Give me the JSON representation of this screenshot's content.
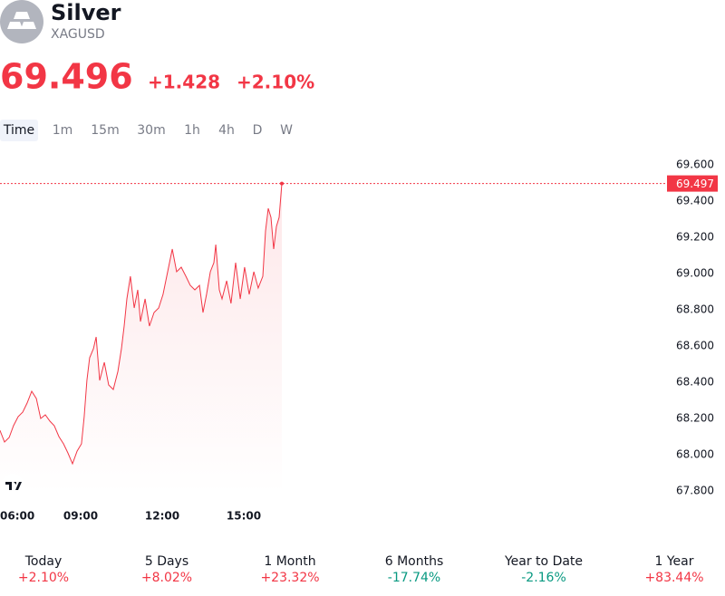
{
  "header": {
    "name": "Silver",
    "symbol": "XAGUSD",
    "price": "69.496",
    "change": "+1.428",
    "change_percent": "+2.10%"
  },
  "timeframes": [
    "Time",
    "1m",
    "15m",
    "30m",
    "1h",
    "4h",
    "D",
    "W"
  ],
  "chart_data": {
    "type": "line",
    "color": "#f23645",
    "x": [
      6.03,
      6.2,
      6.37,
      6.53,
      6.7,
      6.87,
      7.03,
      7.2,
      7.37,
      7.53,
      7.7,
      7.87,
      8.03,
      8.2,
      8.37,
      8.53,
      8.7,
      8.87,
      9.03,
      9.13,
      9.23,
      9.33,
      9.47,
      9.57,
      9.7,
      9.87,
      10.03,
      10.2,
      10.37,
      10.5,
      10.6,
      10.7,
      10.83,
      10.97,
      11.1,
      11.2,
      11.37,
      11.53,
      11.7,
      11.87,
      12.03,
      12.2,
      12.37,
      12.53,
      12.7,
      12.87,
      13.03,
      13.2,
      13.37,
      13.5,
      13.63,
      13.77,
      13.9,
      13.97,
      14.1,
      14.2,
      14.37,
      14.53,
      14.7,
      14.87,
      15.03,
      15.2,
      15.37,
      15.53,
      15.7,
      15.8,
      15.9,
      16,
      16.1,
      16.2,
      16.3,
      16.4
    ],
    "values": [
      68.135,
      68.07,
      68.095,
      68.16,
      68.21,
      68.235,
      68.285,
      68.35,
      68.31,
      68.2,
      68.22,
      68.185,
      68.16,
      68.1,
      68.06,
      68.01,
      67.95,
      68.02,
      68.06,
      68.21,
      68.41,
      68.535,
      68.585,
      68.65,
      68.41,
      68.51,
      68.385,
      68.36,
      68.46,
      68.585,
      68.71,
      68.86,
      68.985,
      68.81,
      68.91,
      68.735,
      68.86,
      68.71,
      68.785,
      68.81,
      68.885,
      69.01,
      69.135,
      69.01,
      69.035,
      68.985,
      68.935,
      68.91,
      68.935,
      68.785,
      68.885,
      69.01,
      69.06,
      69.16,
      68.91,
      68.86,
      68.96,
      68.835,
      69.06,
      68.86,
      69.035,
      68.885,
      69.01,
      68.92,
      68.985,
      69.235,
      69.36,
      69.31,
      69.135,
      69.26,
      69.31,
      69.497
    ],
    "xlim": [
      6,
      30.5
    ],
    "xticks": [
      {
        "value": 6,
        "label": "06:00"
      },
      {
        "value": 9,
        "label": "09:00"
      },
      {
        "value": 12,
        "label": "12:00"
      },
      {
        "value": 15,
        "label": "15:00"
      }
    ],
    "ylim": [
      67.7,
      69.7
    ],
    "yticks": [
      {
        "value": 67.8,
        "label": "67.800"
      },
      {
        "value": 68,
        "label": "68.000"
      },
      {
        "value": 68.2,
        "label": "68.200"
      },
      {
        "value": 68.4,
        "label": "68.400"
      },
      {
        "value": 68.6,
        "label": "68.600"
      },
      {
        "value": 68.8,
        "label": "68.800"
      },
      {
        "value": 69,
        "label": "69.000"
      },
      {
        "value": 69.2,
        "label": "69.200"
      },
      {
        "value": 69.4,
        "label": "69.400"
      },
      {
        "value": 69.6,
        "label": "69.600"
      }
    ]
  },
  "performance": [
    {
      "period": "Today",
      "change": "+2.10%"
    },
    {
      "period": "5 Days",
      "change": "+8.02%"
    },
    {
      "period": "1 Month",
      "change": "+23.32%"
    },
    {
      "period": "6 Months",
      "change": "-17.74%"
    },
    {
      "period": "Year to Date",
      "change": "-2.16%"
    },
    {
      "period": "1 Year",
      "change": "+83.44%"
    }
  ]
}
